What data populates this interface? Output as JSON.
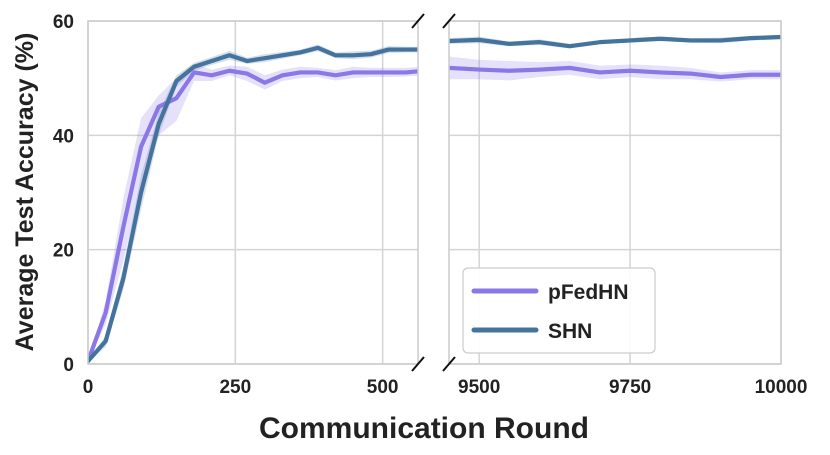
{
  "chart_data": {
    "type": "line",
    "xlabel": "Communication Round",
    "ylabel": "Average Test Accuracy (%)",
    "ylim": [
      0,
      60
    ],
    "yticks": [
      0,
      20,
      40,
      60
    ],
    "grid": true,
    "legend_position": "bottom-right",
    "broken_x_axis": true,
    "panels": [
      {
        "xlim": [
          0,
          560
        ],
        "xticks": [
          0,
          250,
          500
        ]
      },
      {
        "xlim": [
          9450,
          10000
        ],
        "xticks": [
          9500,
          9750,
          10000
        ]
      }
    ],
    "series": [
      {
        "name": "pFedHN",
        "color": "#8b78e6",
        "band_color": "#8b78e6",
        "x": [
          0,
          30,
          60,
          90,
          120,
          150,
          180,
          210,
          240,
          270,
          300,
          330,
          360,
          390,
          420,
          450,
          480,
          510,
          540,
          560,
          9450,
          9500,
          9550,
          9600,
          9650,
          9700,
          9750,
          9800,
          9850,
          9900,
          9950,
          10000
        ],
        "y": [
          0.5,
          9,
          24,
          38,
          45,
          46.5,
          51,
          50.5,
          51.3,
          50.8,
          49.2,
          50.5,
          51,
          51,
          50.5,
          51,
          51,
          51,
          51,
          51.2,
          51.8,
          51.5,
          51.3,
          51.5,
          51.8,
          51,
          51.3,
          51,
          50.8,
          50.2,
          50.6,
          50.6
        ],
        "lower": [
          0.5,
          7,
          18,
          31,
          40,
          42.5,
          49.5,
          49.5,
          50.5,
          49.5,
          48,
          49.5,
          50,
          50.2,
          49.6,
          50,
          50.2,
          50.2,
          50.3,
          50.4,
          49.8,
          49.8,
          49.6,
          50.2,
          50.6,
          49.8,
          50.2,
          49.8,
          49.8,
          49.4,
          49.8,
          49.8
        ],
        "upper": [
          0.5,
          11,
          29,
          43,
          47,
          50,
          52.5,
          51.5,
          52.2,
          52,
          50.5,
          51.5,
          52,
          51.8,
          51.4,
          52,
          51.8,
          51.8,
          51.8,
          52,
          53.8,
          53.2,
          53,
          52.8,
          53,
          52.2,
          52.4,
          52.2,
          51.8,
          51,
          51.4,
          51.4
        ]
      },
      {
        "name": "SHN",
        "color": "#44739e",
        "band_color": "#44739e",
        "x": [
          0,
          30,
          60,
          90,
          120,
          150,
          180,
          210,
          240,
          270,
          300,
          330,
          360,
          390,
          420,
          450,
          480,
          510,
          540,
          560,
          9450,
          9500,
          9550,
          9600,
          9650,
          9700,
          9750,
          9800,
          9850,
          9900,
          9950,
          10000
        ],
        "y": [
          0.5,
          4,
          15,
          30,
          42,
          49.5,
          52,
          53,
          54,
          53,
          53.5,
          54,
          54.5,
          55.3,
          54,
          54,
          54.2,
          55,
          55,
          55,
          56.5,
          56.7,
          56,
          56.3,
          55.6,
          56.3,
          56.6,
          56.9,
          56.6,
          56.6,
          57,
          57.2
        ],
        "lower": [
          0.5,
          3,
          13,
          27,
          40,
          48.5,
          51.3,
          52.3,
          53.2,
          52.5,
          52.8,
          53.4,
          54,
          54.7,
          53.5,
          53.3,
          53.6,
          54.4,
          54.5,
          54.5,
          56,
          56.1,
          55.6,
          55.8,
          55.2,
          56,
          56.2,
          56.5,
          56.2,
          56.1,
          56.6,
          56.8
        ],
        "upper": [
          0.5,
          5,
          17,
          33,
          44,
          50.5,
          52.7,
          53.7,
          54.8,
          53.6,
          54.2,
          54.6,
          55,
          55.9,
          54.5,
          54.7,
          54.8,
          55.6,
          55.5,
          55.5,
          57,
          57.3,
          56.4,
          56.8,
          56,
          56.6,
          57,
          57.3,
          57,
          57.1,
          57.4,
          57.6
        ]
      }
    ]
  }
}
